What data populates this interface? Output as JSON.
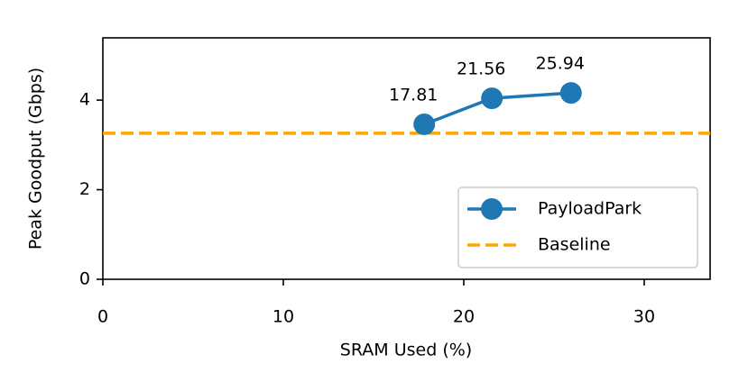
{
  "chart_data": {
    "type": "line",
    "xlabel": "SRAM Used (%)",
    "ylabel": "Peak Goodput (Gbps)",
    "x": [
      17.81,
      21.56,
      25.94
    ],
    "series": [
      {
        "name": "PayloadPark",
        "color": "#1f77b4",
        "values": [
          3.46,
          4.04,
          4.16
        ]
      }
    ],
    "hlines": [
      {
        "name": "Baseline",
        "color": "#ffa500",
        "value": 3.26,
        "style": "dashed"
      }
    ],
    "xlim": [
      0,
      33.65
    ],
    "xticks": [
      0,
      10,
      20,
      30
    ],
    "ylim": [
      0,
      5.39
    ],
    "yticks": [
      0,
      2,
      4
    ],
    "grid": false,
    "legend": "lower right"
  }
}
